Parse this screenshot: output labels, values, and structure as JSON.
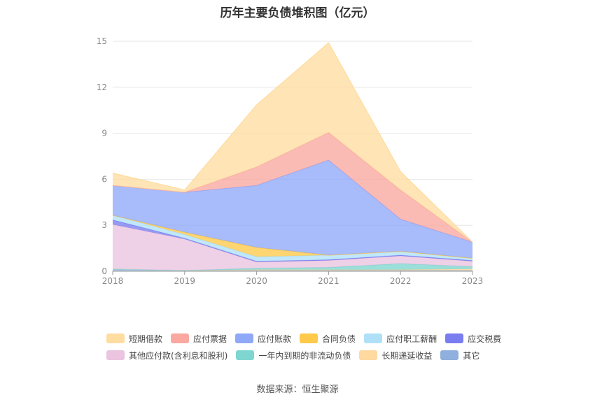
{
  "chart_data": {
    "type": "area",
    "stacked": true,
    "title": "历年主要负债堆积图（亿元）",
    "x": [
      "2018",
      "2019",
      "2020",
      "2021",
      "2022",
      "2023"
    ],
    "ylim": [
      0,
      15
    ],
    "yticks": [
      "0",
      "3",
      "6",
      "9",
      "12",
      "15"
    ],
    "grid": true,
    "legend_position": "bottom",
    "series": [
      {
        "name": "其它",
        "color": "#8fb0dc",
        "values": [
          0.15,
          0.05,
          0.05,
          0.05,
          0.05,
          0.05
        ]
      },
      {
        "name": "长期递延收益",
        "color": "#ffd9a0",
        "values": [
          0,
          0,
          0.05,
          0.05,
          0.05,
          0.1
        ]
      },
      {
        "name": "一年内到期的非流动负债",
        "color": "#7fd6d0",
        "values": [
          0,
          0,
          0.1,
          0.15,
          0.4,
          0.15
        ]
      },
      {
        "name": "其他应付款(含利息和股利)",
        "color": "#ebc4e0",
        "values": [
          2.9,
          2.05,
          0.4,
          0.45,
          0.5,
          0.35
        ]
      },
      {
        "name": "应交税费",
        "color": "#7a7df0",
        "values": [
          0.3,
          0.05,
          0.05,
          0.05,
          0.05,
          0.05
        ]
      },
      {
        "name": "应付职工薪酬",
        "color": "#b0e0f8",
        "values": [
          0.3,
          0.25,
          0.3,
          0.3,
          0.25,
          0.15
        ]
      },
      {
        "name": "合同负债",
        "color": "#ffc94a",
        "values": [
          0,
          0.15,
          0.6,
          0,
          0,
          0
        ]
      },
      {
        "name": "应付账款",
        "color": "#90a8f8",
        "values": [
          1.95,
          2.6,
          4.05,
          6.2,
          2.1,
          1.05
        ]
      },
      {
        "name": "应付票据",
        "color": "#faa8a0",
        "values": [
          0,
          0,
          1.2,
          1.8,
          1.9,
          0
        ]
      },
      {
        "name": "短期借款",
        "color": "#ffdca0",
        "values": [
          0.8,
          0.15,
          4.05,
          5.85,
          1.2,
          0
        ]
      }
    ]
  },
  "legend_rows": [
    [
      {
        "label": "短期借款",
        "color": "#ffdca0"
      },
      {
        "label": "应付票据",
        "color": "#faa8a0"
      },
      {
        "label": "应付账款",
        "color": "#90a8f8"
      },
      {
        "label": "合同负债",
        "color": "#ffc94a"
      },
      {
        "label": "应付职工薪酬",
        "color": "#b0e0f8"
      },
      {
        "label": "应交税费",
        "color": "#7a7df0"
      }
    ],
    [
      {
        "label": "其他应付款(含利息和股利)",
        "color": "#ebc4e0"
      },
      {
        "label": "一年内到期的非流动负债",
        "color": "#7fd6d0"
      },
      {
        "label": "长期递延收益",
        "color": "#ffd9a0"
      },
      {
        "label": "其它",
        "color": "#8fb0dc"
      }
    ]
  ],
  "source": "数据来源：恒生聚源"
}
